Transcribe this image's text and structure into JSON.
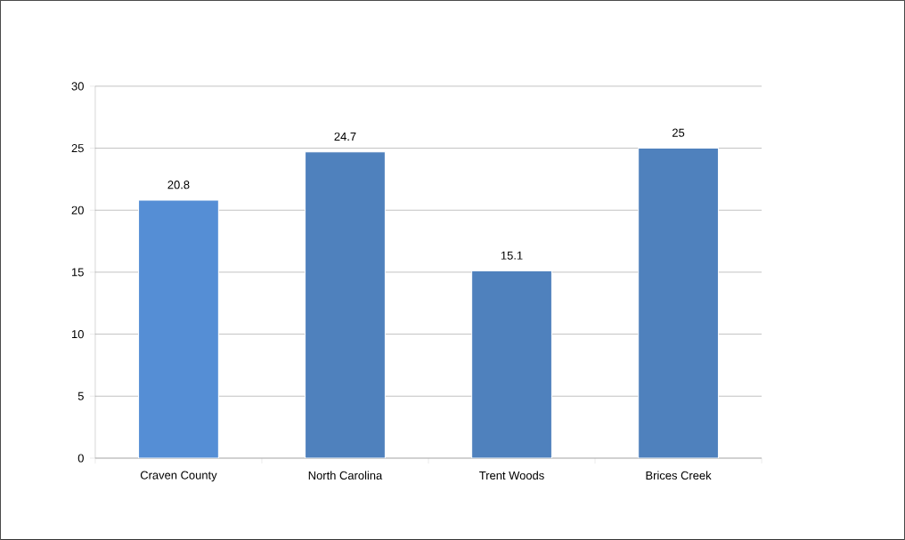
{
  "chart_data": {
    "type": "bar",
    "categories": [
      "Craven County",
      "North Carolina",
      "Trent Woods",
      "Brices Creek"
    ],
    "values": [
      20.8,
      24.7,
      15.1,
      25
    ],
    "colors": [
      "#558ed5",
      "#4f81bd",
      "#4f81bd",
      "#4f81bd"
    ],
    "ylim": [
      0,
      30
    ],
    "yticks": [
      0,
      5,
      10,
      15,
      20,
      25,
      30
    ],
    "grid": "y",
    "data_labels": true
  }
}
